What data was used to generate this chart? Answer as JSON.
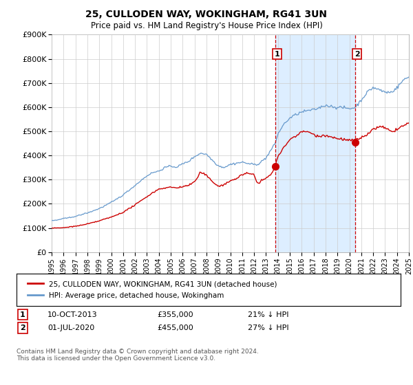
{
  "title": "25, CULLODEN WAY, WOKINGHAM, RG41 3UN",
  "subtitle": "Price paid vs. HM Land Registry's House Price Index (HPI)",
  "ylabel_ticks": [
    "£0",
    "£100K",
    "£200K",
    "£300K",
    "£400K",
    "£500K",
    "£600K",
    "£700K",
    "£800K",
    "£900K"
  ],
  "ylim": [
    0,
    900000
  ],
  "xlim_start": 1995,
  "xlim_end": 2025,
  "grid_color": "#cccccc",
  "hpi_color": "#6699cc",
  "hpi_fill_color": "#ddeeff",
  "price_color": "#cc0000",
  "marker1_date": 2013.78,
  "marker1_price": 355000,
  "marker2_date": 2020.5,
  "marker2_price": 455000,
  "vline_color": "#cc0000",
  "label1": "1",
  "label2": "2",
  "legend_label1": "25, CULLODEN WAY, WOKINGHAM, RG41 3UN (detached house)",
  "legend_label2": "HPI: Average price, detached house, Wokingham",
  "annotation1_date": "10-OCT-2013",
  "annotation1_price": "£355,000",
  "annotation1_hpi": "21% ↓ HPI",
  "annotation2_date": "01-JUL-2020",
  "annotation2_price": "£455,000",
  "annotation2_hpi": "27% ↓ HPI",
  "footer": "Contains HM Land Registry data © Crown copyright and database right 2024.\nThis data is licensed under the Open Government Licence v3.0.",
  "background_color": "#ffffff",
  "figwidth": 6.0,
  "figheight": 5.6,
  "dpi": 100
}
